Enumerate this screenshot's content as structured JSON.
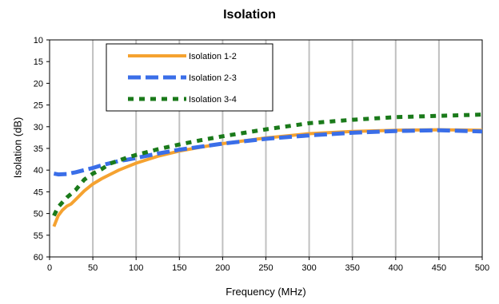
{
  "chart_data": {
    "type": "line",
    "title": "Isolation",
    "xlabel": "Frequency (MHz)",
    "ylabel": "Isolation (dB)",
    "xlim": [
      0,
      500
    ],
    "ylim": [
      10,
      60
    ],
    "y_inverted": true,
    "x_ticks": [
      0,
      50,
      100,
      150,
      200,
      250,
      300,
      350,
      400,
      450,
      500
    ],
    "y_ticks": [
      10,
      15,
      20,
      25,
      30,
      35,
      40,
      45,
      50,
      55,
      60
    ],
    "grid": {
      "vertical": true,
      "horizontal": false
    },
    "legend_placement": "top-left",
    "series": [
      {
        "name": "Isolation 1-2",
        "color": "#f5a230",
        "style": "solid",
        "x": [
          5,
          10,
          15,
          20,
          25,
          30,
          40,
          50,
          60,
          70,
          80,
          90,
          100,
          125,
          150,
          175,
          200,
          250,
          300,
          350,
          400,
          450,
          500
        ],
        "y": [
          53,
          50.5,
          49.2,
          48.3,
          47.8,
          46.8,
          44.8,
          43.2,
          42,
          41,
          40,
          39.2,
          38.4,
          36.8,
          35.6,
          34.7,
          33.9,
          32.6,
          31.6,
          31.1,
          30.8,
          30.7,
          30.8
        ]
      },
      {
        "name": "Isolation 2-3",
        "color": "#3a6ee8",
        "style": "dash",
        "x": [
          5,
          10,
          20,
          30,
          40,
          50,
          60,
          70,
          80,
          90,
          100,
          125,
          150,
          175,
          200,
          250,
          300,
          350,
          400,
          450,
          500
        ],
        "y": [
          40.8,
          41,
          40.9,
          40.5,
          40,
          39.5,
          38.9,
          38.4,
          37.9,
          37.6,
          37.2,
          36.2,
          35.3,
          34.6,
          33.9,
          32.8,
          32,
          31.4,
          31,
          30.8,
          31.1
        ]
      },
      {
        "name": "Isolation 3-4",
        "color": "#1a7a1a",
        "style": "dot",
        "x": [
          5,
          10,
          20,
          30,
          40,
          50,
          60,
          70,
          80,
          90,
          100,
          125,
          150,
          175,
          200,
          250,
          300,
          350,
          400,
          450,
          500
        ],
        "y": [
          50.5,
          48.5,
          46.3,
          44.6,
          42.2,
          40.8,
          39.8,
          38.5,
          37.8,
          37.1,
          36.5,
          35.2,
          34.1,
          33.1,
          32.2,
          30.6,
          29.2,
          28.4,
          27.8,
          27.5,
          27.2
        ]
      }
    ]
  }
}
